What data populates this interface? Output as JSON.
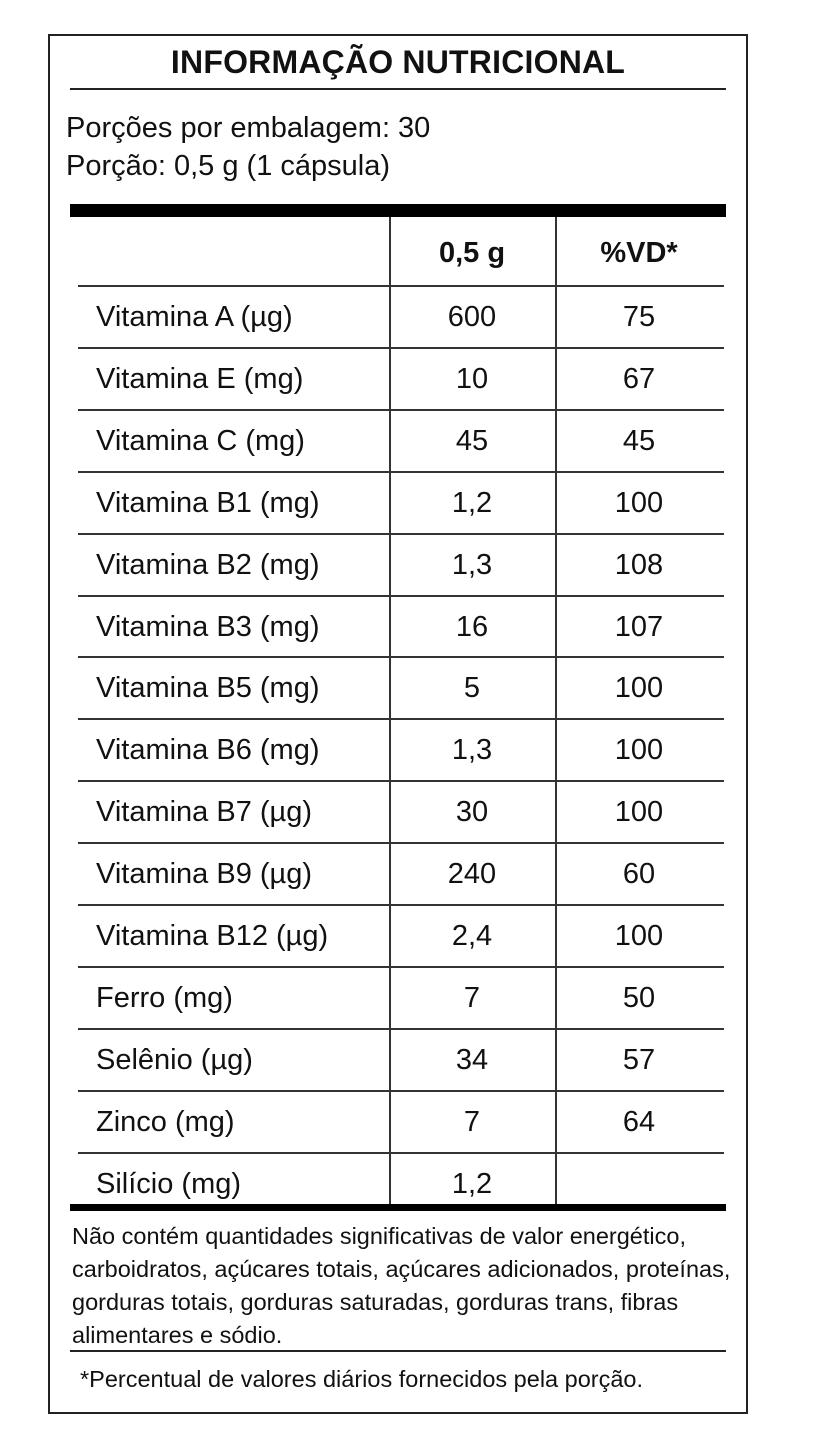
{
  "title": "INFORMAÇÃO NUTRICIONAL",
  "servings_per_package": "Porções por embalagem: 30",
  "serving_size": "Porção: 0,5 g (1 cápsula)",
  "table": {
    "headers": [
      "",
      "0,5 g",
      "%VD*"
    ],
    "rows": [
      {
        "name": "Vitamina A (µg)",
        "amount": "600",
        "vd": "75"
      },
      {
        "name": "Vitamina E (mg)",
        "amount": "10",
        "vd": "67"
      },
      {
        "name": "Vitamina C (mg)",
        "amount": "45",
        "vd": "45"
      },
      {
        "name": "Vitamina B1 (mg)",
        "amount": "1,2",
        "vd": "100"
      },
      {
        "name": "Vitamina B2 (mg)",
        "amount": "1,3",
        "vd": "108"
      },
      {
        "name": "Vitamina B3 (mg)",
        "amount": "16",
        "vd": "107"
      },
      {
        "name": "Vitamina B5 (mg)",
        "amount": "5",
        "vd": "100"
      },
      {
        "name": "Vitamina B6 (mg)",
        "amount": "1,3",
        "vd": "100"
      },
      {
        "name": "Vitamina B7 (µg)",
        "amount": "30",
        "vd": "100"
      },
      {
        "name": "Vitamina B9 (µg)",
        "amount": "240",
        "vd": "60"
      },
      {
        "name": "Vitamina B12 (µg)",
        "amount": "2,4",
        "vd": "100"
      },
      {
        "name": "Ferro (mg)",
        "amount": "7",
        "vd": "50"
      },
      {
        "name": "Selênio (µg)",
        "amount": "34",
        "vd": "57"
      },
      {
        "name": "Zinco (mg)",
        "amount": "7",
        "vd": "64"
      },
      {
        "name": "Silício (mg)",
        "amount": "1,2",
        "vd": ""
      }
    ]
  },
  "footnote": "Não contém quantidades significativas de valor energético, carboidratos, açúcares totais, açúcares adicionados, proteínas, gorduras totais, gorduras saturadas, gorduras trans, fibras alimentares e sódio.",
  "vd_footnote": "*Percentual de valores diários fornecidos pela porção."
}
